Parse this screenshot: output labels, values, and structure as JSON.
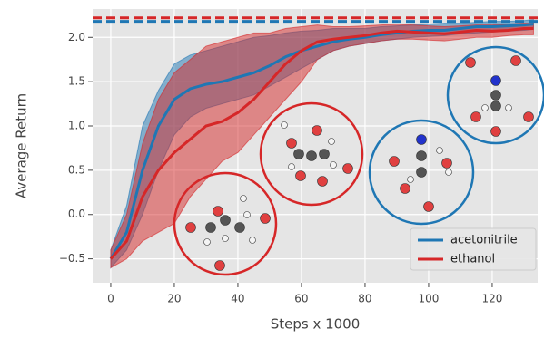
{
  "chart_data": {
    "type": "line",
    "xlabel": "Steps x 1000",
    "ylabel": "Average Return",
    "x": [
      0,
      5,
      10,
      15,
      20,
      25,
      30,
      35,
      40,
      45,
      50,
      55,
      60,
      65,
      70,
      75,
      80,
      85,
      90,
      95,
      100,
      105,
      110,
      115,
      120,
      125,
      130,
      133
    ],
    "series": [
      {
        "name": "acetonitrile",
        "color": "#1f77b4",
        "reference": 2.18,
        "values": [
          -0.5,
          -0.2,
          0.5,
          1.0,
          1.3,
          1.42,
          1.47,
          1.5,
          1.55,
          1.6,
          1.68,
          1.78,
          1.85,
          1.9,
          1.95,
          1.98,
          2.0,
          2.03,
          2.05,
          2.07,
          2.08,
          2.08,
          2.1,
          2.12,
          2.12,
          2.13,
          2.14,
          2.15
        ],
        "lower": [
          -0.6,
          -0.4,
          0.0,
          0.5,
          0.9,
          1.1,
          1.2,
          1.25,
          1.3,
          1.35,
          1.45,
          1.55,
          1.65,
          1.75,
          1.85,
          1.9,
          1.93,
          1.96,
          1.98,
          2.0,
          2.01,
          2.02,
          2.04,
          2.05,
          2.06,
          2.07,
          2.08,
          2.09
        ],
        "upper": [
          -0.4,
          0.1,
          1.0,
          1.4,
          1.7,
          1.8,
          1.85,
          1.9,
          1.95,
          2.0,
          2.02,
          2.05,
          2.07,
          2.08,
          2.1,
          2.1,
          2.1,
          2.12,
          2.13,
          2.14,
          2.15,
          2.16,
          2.16,
          2.17,
          2.18,
          2.18,
          2.19,
          2.2
        ]
      },
      {
        "name": "ethanol",
        "color": "#d62728",
        "reference": 2.22,
        "values": [
          -0.5,
          -0.3,
          0.2,
          0.5,
          0.7,
          0.85,
          1.0,
          1.05,
          1.15,
          1.3,
          1.5,
          1.7,
          1.85,
          1.95,
          1.98,
          2.0,
          2.02,
          2.05,
          2.07,
          2.06,
          2.05,
          2.04,
          2.06,
          2.08,
          2.07,
          2.08,
          2.1,
          2.1
        ],
        "lower": [
          -0.6,
          -0.5,
          -0.3,
          -0.2,
          -0.1,
          0.2,
          0.4,
          0.6,
          0.7,
          0.9,
          1.1,
          1.3,
          1.5,
          1.75,
          1.85,
          1.9,
          1.93,
          1.96,
          1.98,
          1.98,
          1.97,
          1.96,
          1.98,
          2.0,
          2.0,
          2.02,
          2.03,
          2.03
        ],
        "upper": [
          -0.4,
          0.0,
          0.8,
          1.3,
          1.6,
          1.75,
          1.9,
          1.95,
          2.0,
          2.05,
          2.05,
          2.1,
          2.12,
          2.14,
          2.12,
          2.12,
          2.13,
          2.14,
          2.15,
          2.14,
          2.13,
          2.12,
          2.13,
          2.14,
          2.14,
          2.15,
          2.16,
          2.16
        ]
      }
    ],
    "xlim": [
      -5.7,
      134.3
    ],
    "ylim": [
      -0.77,
      2.32
    ],
    "xticks": [
      0,
      20,
      40,
      60,
      80,
      100,
      120
    ],
    "yticks": [
      {
        "value": -0.5,
        "label": "−0.5"
      },
      {
        "value": 0,
        "label": "0.0"
      },
      0.5,
      {
        "value": 1,
        "label": "1.0"
      },
      1.5,
      {
        "value": 2,
        "label": "2.0"
      }
    ],
    "grid": true,
    "legend": "lower right"
  }
}
